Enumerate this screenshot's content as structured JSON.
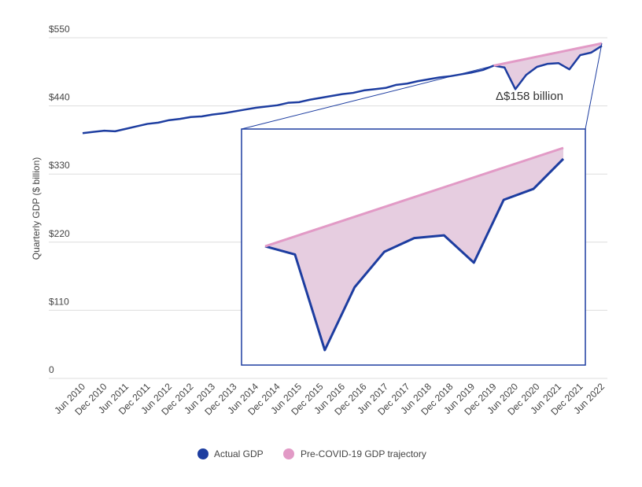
{
  "chart_data": {
    "type": "line",
    "y_label": "Quarterly GDP ($ billion)",
    "annotation": "Δ$158 billion",
    "categories": [
      "Jun 2010",
      null,
      "Dec 2010",
      null,
      "Jun 2011",
      null,
      "Dec 2011",
      null,
      "Jun 2012",
      null,
      "Dec 2012",
      null,
      "Jun 2013",
      null,
      "Dec 2013",
      null,
      "Jun 2014",
      null,
      "Dec 2014",
      null,
      "Jun 2015",
      null,
      "Dec 2015",
      null,
      "Jun 2016",
      null,
      "Dec 2016",
      null,
      "Jun 2017",
      null,
      "Dec 2017",
      null,
      "Jun 2018",
      null,
      "Dec 2018",
      null,
      "Jun 2019",
      null,
      "Dec 2019",
      null,
      "Jun 2020",
      null,
      "Dec 2020",
      null,
      "Jun 2021",
      null,
      "Dec 2021",
      null,
      "Jun 2022"
    ],
    "series": [
      {
        "name": "Actual GDP",
        "color": "#1d3da0",
        "values": [
          396,
          398,
          400,
          399,
          403,
          407,
          411,
          413,
          417,
          419,
          422,
          423,
          426,
          428,
          431,
          434,
          437,
          439,
          441,
          445,
          446,
          450,
          453,
          456,
          459,
          461,
          465,
          467,
          469,
          474,
          476,
          480,
          483,
          486,
          488,
          491,
          494,
          498,
          505,
          502,
          467,
          490,
          503,
          508,
          509,
          499,
          522,
          526,
          537
        ]
      },
      {
        "name": "Pre-COVID-19 GDP trajectory",
        "color": "#e29ac6",
        "values": [
          null,
          null,
          null,
          null,
          null,
          null,
          null,
          null,
          null,
          null,
          null,
          null,
          null,
          null,
          null,
          null,
          null,
          null,
          null,
          null,
          null,
          null,
          null,
          null,
          null,
          null,
          null,
          null,
          null,
          null,
          null,
          null,
          null,
          null,
          null,
          null,
          null,
          null,
          505,
          508.6,
          512.2,
          515.8,
          519.4,
          523,
          526.6,
          530.2,
          533.8,
          537.4,
          541
        ]
      }
    ],
    "ylim": [
      0,
      550
    ],
    "yticks": [
      0,
      {
        "value": 110,
        "label": "$110"
      },
      {
        "value": 220,
        "label": "$220"
      },
      {
        "value": 330,
        "label": "$330"
      },
      {
        "value": 440,
        "label": "$440"
      },
      {
        "value": 550,
        "label": "$550"
      }
    ],
    "grid": true
  }
}
